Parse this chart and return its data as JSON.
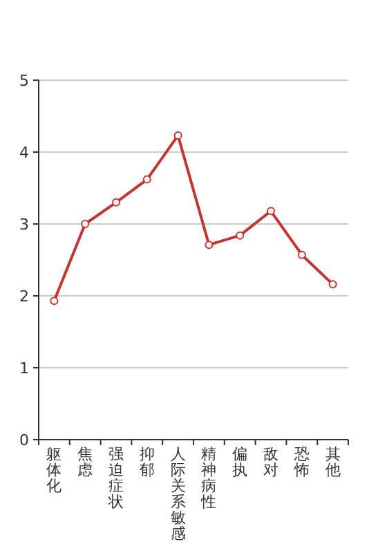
{
  "chart_data": {
    "type": "line",
    "categories": [
      "躯体化",
      "焦虑",
      "强迫症状",
      "抑郁",
      "人际关系敏感",
      "精神病性",
      "偏执",
      "敌对",
      "恐怖",
      "其他"
    ],
    "series": [
      {
        "color": "#c23531",
        "values": [
          1.93,
          3.0,
          3.3,
          3.62,
          4.23,
          2.71,
          2.84,
          3.18,
          2.57,
          2.16
        ]
      }
    ],
    "ylim": [
      0,
      5
    ],
    "yticks": [
      0,
      1,
      2,
      3,
      4,
      5
    ],
    "grid": "y",
    "marker": "circle",
    "line_style": "solid"
  }
}
